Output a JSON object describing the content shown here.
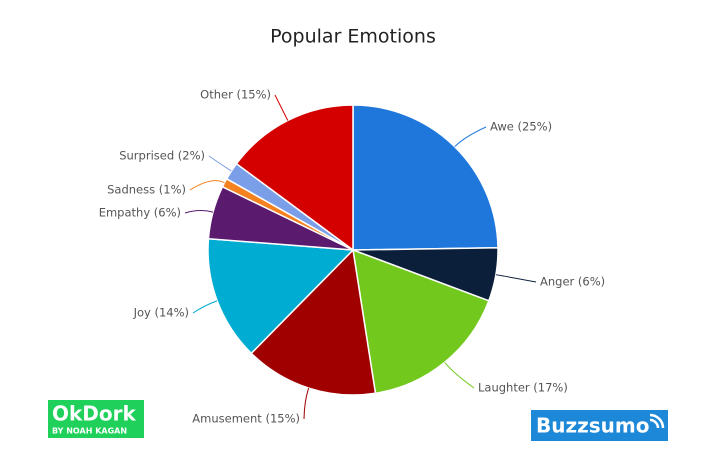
{
  "chart_data": {
    "type": "pie",
    "title": "Popular Emotions",
    "categories": [
      "Awe (25%)",
      "Anger (6%)",
      "Laughter (17%)",
      "Amusement (15%)",
      "Joy (14%)",
      "Empathy (6%)",
      "Sadness (1%)",
      "Surprised (2%)",
      "Other (15%)"
    ],
    "values": [
      25,
      6,
      17,
      15,
      14,
      6,
      1,
      2,
      15
    ],
    "colors": [
      "#1f77dc",
      "#0b1f3b",
      "#73c81e",
      "#a00000",
      "#00acd2",
      "#5a1a6e",
      "#f5821f",
      "#7b9ee8",
      "#d40000"
    ]
  },
  "logos": {
    "left": {
      "name": "OkDork",
      "tagline": "BY NOAH KAGAN"
    },
    "right": {
      "name": "Buzzsumo"
    }
  }
}
